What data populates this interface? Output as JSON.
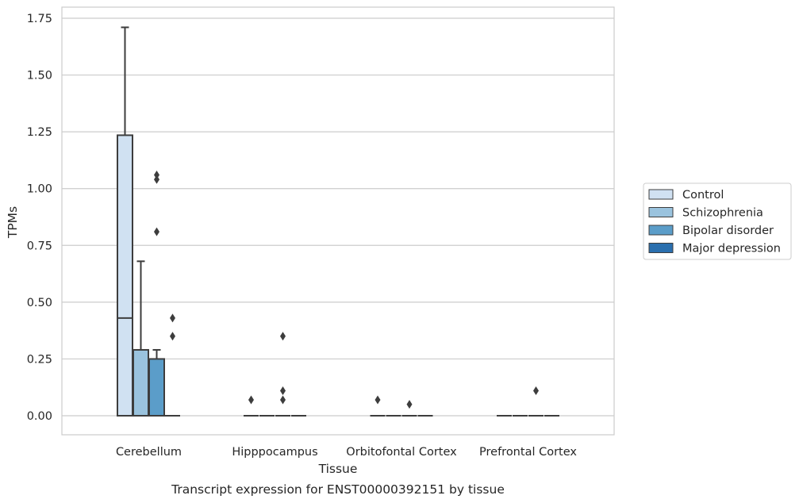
{
  "chart_data": {
    "type": "box",
    "title": "Transcript expression for ENST00000392151 by tissue",
    "xlabel": "Tissue",
    "ylabel": "TPMs",
    "categories": [
      "Cerebellum",
      "Hipppocampus",
      "Orbitofontal Cortex",
      "Prefrontal Cortex"
    ],
    "ylim": [
      -0.08,
      1.8
    ],
    "yticks": [
      0.0,
      0.25,
      0.5,
      0.75,
      1.0,
      1.25,
      1.5,
      1.75
    ],
    "ytick_labels": [
      "0.00",
      "0.25",
      "0.50",
      "0.75",
      "1.00",
      "1.25",
      "1.50",
      "1.75"
    ],
    "grid": true,
    "legend_position": "right",
    "series": [
      {
        "name": "Control",
        "color": "#d0e1f2",
        "boxes": [
          {
            "q1": 0.0,
            "median": 0.43,
            "q3": 1.235,
            "whisker_low": 0.0,
            "whisker_high": 1.71,
            "outliers": []
          },
          {
            "q1": 0.0,
            "median": 0.0,
            "q3": 0.0,
            "whisker_low": 0.0,
            "whisker_high": 0.0,
            "outliers": [
              0.07
            ]
          },
          {
            "q1": 0.0,
            "median": 0.0,
            "q3": 0.0,
            "whisker_low": 0.0,
            "whisker_high": 0.0,
            "outliers": [
              0.07
            ]
          },
          {
            "q1": 0.0,
            "median": 0.0,
            "q3": 0.0,
            "whisker_low": 0.0,
            "whisker_high": 0.0,
            "outliers": []
          }
        ]
      },
      {
        "name": "Schizophrenia",
        "color": "#9ac3de",
        "boxes": [
          {
            "q1": 0.0,
            "median": 0.0,
            "q3": 0.29,
            "whisker_low": 0.0,
            "whisker_high": 0.68,
            "outliers": []
          },
          {
            "q1": 0.0,
            "median": 0.0,
            "q3": 0.0,
            "whisker_low": 0.0,
            "whisker_high": 0.0,
            "outliers": []
          },
          {
            "q1": 0.0,
            "median": 0.0,
            "q3": 0.0,
            "whisker_low": 0.0,
            "whisker_high": 0.0,
            "outliers": []
          },
          {
            "q1": 0.0,
            "median": 0.0,
            "q3": 0.0,
            "whisker_low": 0.0,
            "whisker_high": 0.0,
            "outliers": []
          }
        ]
      },
      {
        "name": "Bipolar disorder",
        "color": "#5b9dc9",
        "boxes": [
          {
            "q1": 0.0,
            "median": 0.0,
            "q3": 0.25,
            "whisker_low": 0.0,
            "whisker_high": 0.29,
            "outliers": [
              1.06,
              1.04,
              0.81
            ]
          },
          {
            "q1": 0.0,
            "median": 0.0,
            "q3": 0.0,
            "whisker_low": 0.0,
            "whisker_high": 0.0,
            "outliers": [
              0.35,
              0.11,
              0.07
            ]
          },
          {
            "q1": 0.0,
            "median": 0.0,
            "q3": 0.0,
            "whisker_low": 0.0,
            "whisker_high": 0.0,
            "outliers": [
              0.05
            ]
          },
          {
            "q1": 0.0,
            "median": 0.0,
            "q3": 0.0,
            "whisker_low": 0.0,
            "whisker_high": 0.0,
            "outliers": [
              0.11
            ]
          }
        ]
      },
      {
        "name": "Major depression",
        "color": "#2a6fae",
        "boxes": [
          {
            "q1": 0.0,
            "median": 0.0,
            "q3": 0.0,
            "whisker_low": 0.0,
            "whisker_high": 0.0,
            "outliers": [
              0.43,
              0.35
            ]
          },
          {
            "q1": 0.0,
            "median": 0.0,
            "q3": 0.0,
            "whisker_low": 0.0,
            "whisker_high": 0.0,
            "outliers": []
          },
          {
            "q1": 0.0,
            "median": 0.0,
            "q3": 0.0,
            "whisker_low": 0.0,
            "whisker_high": 0.0,
            "outliers": []
          },
          {
            "q1": 0.0,
            "median": 0.0,
            "q3": 0.0,
            "whisker_low": 0.0,
            "whisker_high": 0.0,
            "outliers": []
          }
        ]
      }
    ]
  }
}
